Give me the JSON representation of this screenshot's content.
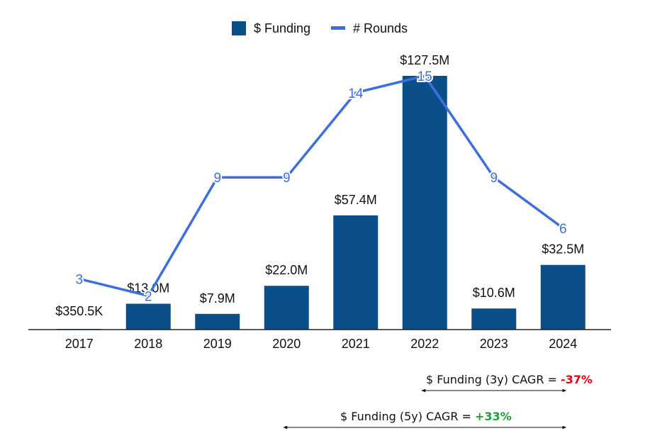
{
  "chart_data": {
    "type": "bar",
    "categories": [
      "2017",
      "2018",
      "2019",
      "2020",
      "2021",
      "2022",
      "2023",
      "2024"
    ],
    "series": [
      {
        "name": "$ Funding",
        "type": "bar",
        "color": "#0b4f8a",
        "values": [
          0.3505,
          13.0,
          7.9,
          22.0,
          57.4,
          127.5,
          10.6,
          32.5
        ],
        "labels": [
          "$350.5K",
          "$13.0M",
          "$7.9M",
          "$22.0M",
          "$57.4M",
          "$127.5M",
          "$10.6M",
          "$32.5M"
        ]
      },
      {
        "name": "# Rounds",
        "type": "line",
        "color": "#3d6ee0",
        "values": [
          3,
          2,
          9,
          9,
          14,
          15,
          9,
          6
        ]
      }
    ],
    "legend_position": "top-center",
    "grid": false
  },
  "annotations": {
    "cagr_3y": {
      "label": "$ Funding (3y) CAGR = ",
      "value": "-37%",
      "color": "#e8000d"
    },
    "cagr_5y": {
      "label": "$ Funding (5y) CAGR = ",
      "value": "+33%",
      "color": "#1aa12f"
    }
  }
}
